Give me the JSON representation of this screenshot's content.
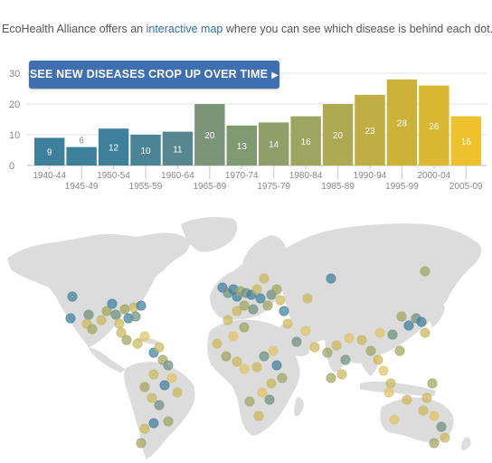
{
  "intro": {
    "prefix": "EcoHealth Alliance offers an ",
    "link": "interactive map",
    "suffix": " where you can see which disease is behind each dot."
  },
  "cta": {
    "label": "SEE NEW DISEASES CROP UP OVER TIME",
    "arrow": "▶"
  },
  "chart_data": {
    "type": "bar",
    "categories": [
      "1940-44",
      "1945-49",
      "1950-54",
      "1955-59",
      "1960-64",
      "1965-69",
      "1970-74",
      "1975-79",
      "1980-84",
      "1985-89",
      "1990-94",
      "1995-99",
      "2000-04",
      "2005-09"
    ],
    "values": [
      9,
      6,
      12,
      10,
      11,
      20,
      13,
      14,
      16,
      20,
      23,
      28,
      26,
      16
    ],
    "colors": [
      "#3e7f9c",
      "#3e7f9c",
      "#3e7f9c",
      "#4a8296",
      "#56878f",
      "#7a9578",
      "#7f9a70",
      "#8f9f68",
      "#9ea560",
      "#aea953",
      "#c0ae45",
      "#ccb238",
      "#dab831",
      "#eec22d"
    ],
    "yticks": [
      0,
      10,
      20,
      30
    ],
    "ylim": [
      0,
      30
    ],
    "grid": true
  },
  "map": {
    "land_color": "#dcdcdc",
    "dot_colors": [
      "#3e7f9c",
      "#6f9080",
      "#9ea560",
      "#c9b85a",
      "#e0c466"
    ]
  }
}
